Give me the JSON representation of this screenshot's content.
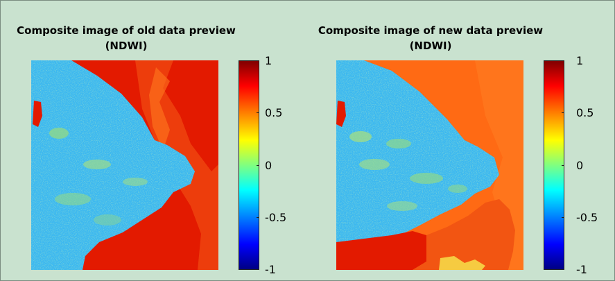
{
  "panels": [
    {
      "title_line1": "Composite image of old data preview",
      "title_line2": "(NDWI)"
    },
    {
      "title_line1": "Composite image of new data preview",
      "title_line2": "(NDWI)"
    }
  ],
  "colorbar": {
    "ticks": [
      "1",
      "0.5",
      "0",
      "-0.5",
      "-1"
    ],
    "colormap": "jet",
    "range": [
      -1,
      1
    ]
  },
  "colors": {
    "background": "#c9e2cf",
    "old_water": "#e31a00",
    "new_water": "#ff6a14",
    "land": "#3cb8f0"
  }
}
